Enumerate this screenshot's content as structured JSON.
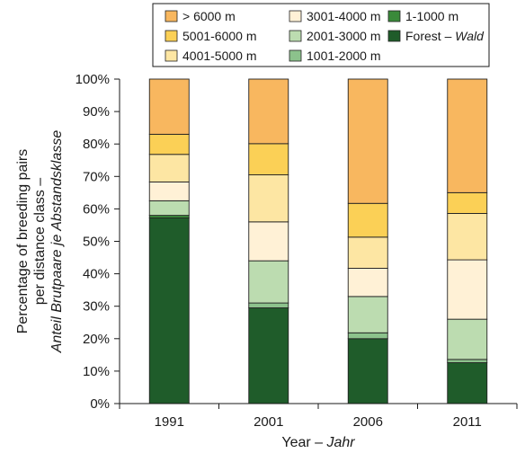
{
  "chart_data": {
    "type": "bar",
    "stacked": true,
    "categories": [
      "1991",
      "2001",
      "2006",
      "2011"
    ],
    "xlabel": {
      "main": "Year – ",
      "italic": "Jahr"
    },
    "ylabel": {
      "lines": [
        "Percentage of breeding pairs",
        "per distance class –"
      ],
      "italic": "Anteil Brutpaare je Abstandsklasse"
    },
    "ylim": [
      0,
      100
    ],
    "yticks": [
      "0%",
      "10%",
      "20%",
      "30%",
      "40%",
      "50%",
      "60%",
      "70%",
      "80%",
      "90%",
      "100%"
    ],
    "legend_position": "top",
    "series": [
      {
        "name": "Forest – ",
        "name_italic": "Wald",
        "color": "#1f5c2a",
        "values": [
          57.2,
          29.5,
          20.0,
          12.6
        ]
      },
      {
        "name": "1-1000 m",
        "color": "#3a8a3a",
        "values": [
          0.8,
          0.0,
          0.0,
          0.0
        ]
      },
      {
        "name": "1001-2000 m",
        "color": "#8cc28c",
        "values": [
          0.0,
          1.5,
          1.8,
          1.0
        ]
      },
      {
        "name": "2001-3000 m",
        "color": "#bcdcb0",
        "values": [
          4.5,
          13.0,
          11.2,
          12.4
        ]
      },
      {
        "name": "3001-4000 m",
        "color": "#fff1d6",
        "values": [
          5.8,
          12.0,
          8.7,
          18.3
        ]
      },
      {
        "name": "4001-5000 m",
        "color": "#fde6a3",
        "values": [
          8.5,
          14.5,
          9.6,
          14.3
        ]
      },
      {
        "name": "5001-6000 m",
        "color": "#fbd056",
        "values": [
          6.2,
          9.6,
          10.4,
          6.4
        ]
      },
      {
        "name": "> 6000 m",
        "color": "#f8b75f",
        "values": [
          17.0,
          19.9,
          38.3,
          35.0
        ]
      }
    ],
    "legend_order": [
      "> 6000 m",
      "3001-4000 m",
      "1-1000 m",
      "5001-6000 m",
      "2001-3000 m",
      "Forest – ",
      "4001-5000 m",
      "1001-2000 m"
    ],
    "grid": false
  }
}
